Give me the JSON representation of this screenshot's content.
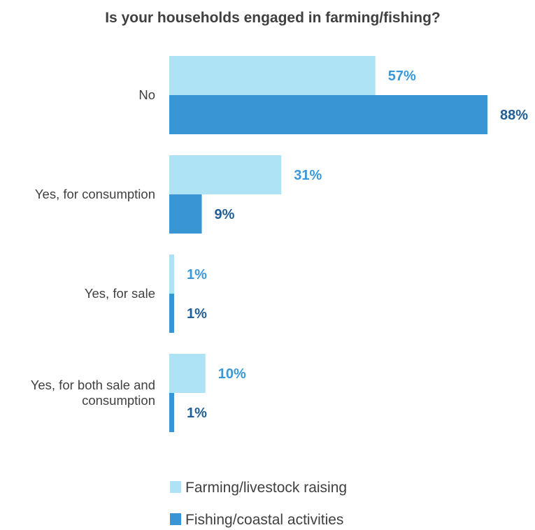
{
  "chart_data": {
    "type": "bar",
    "orientation": "horizontal",
    "title": "Is your households engaged in farming/fishing?",
    "categories": [
      [
        "No"
      ],
      [
        "Yes, for consumption"
      ],
      [
        "Yes, for sale"
      ],
      [
        "Yes, for both sale and",
        "consumption"
      ]
    ],
    "series": [
      {
        "name": "Farming/livestock raising",
        "values": [
          57,
          31,
          1,
          10
        ],
        "labels": [
          "57%",
          "31%",
          "1%",
          "10%"
        ],
        "color": "#aee3f5",
        "label_color": "#3a98d8"
      },
      {
        "name": "Fishing/coastal activities",
        "values": [
          88,
          9,
          1,
          1
        ],
        "labels": [
          "88%",
          "9%",
          "1%",
          "1%"
        ],
        "color": "#3a95d4",
        "label_color": "#1f5e96"
      }
    ],
    "xlim": [
      0,
      88
    ],
    "unit": "%",
    "grid": false,
    "legend_position": "bottom"
  }
}
